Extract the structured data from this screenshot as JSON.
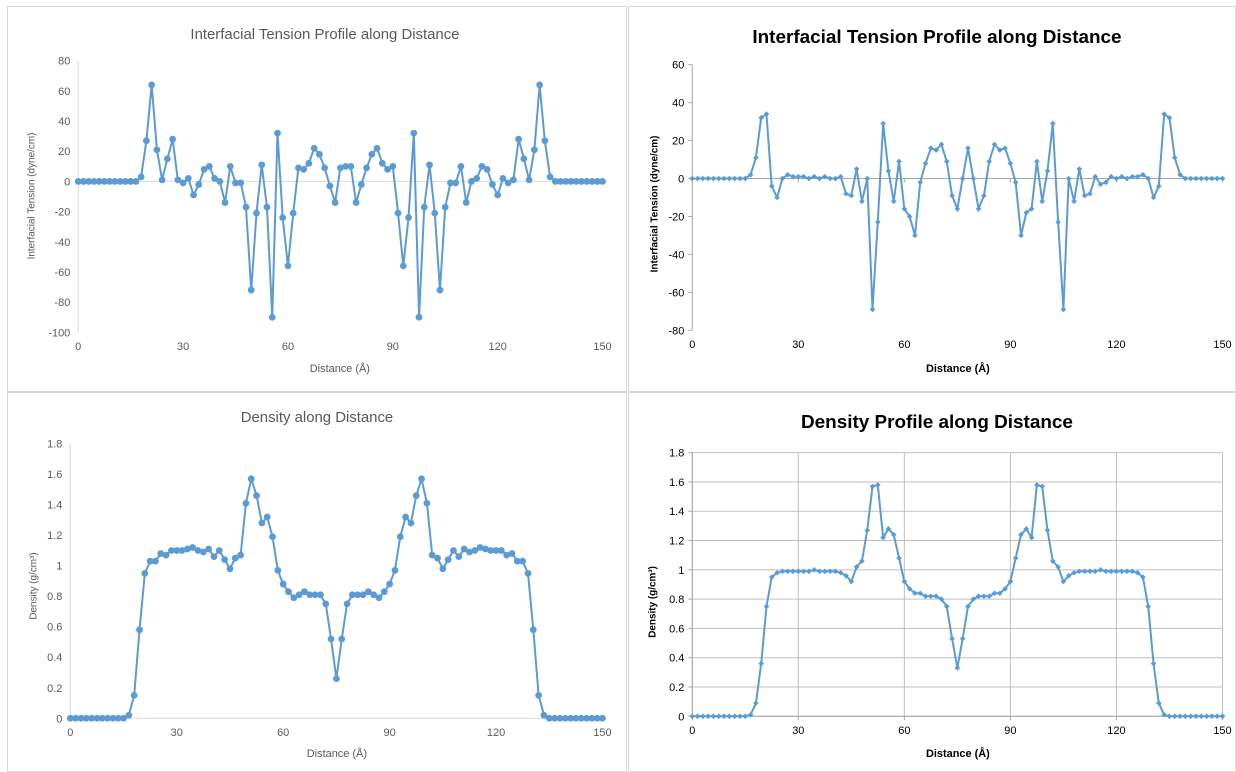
{
  "chart_data": [
    {
      "type": "line",
      "title": "Interfacial Tension  Profile along Distance",
      "xlabel": "Distance (Å)",
      "ylabel": "Interfacial Tension (dyne/cm)",
      "xlim": [
        0,
        150
      ],
      "ylim": [
        -100,
        80
      ],
      "xticks": [
        0,
        30,
        60,
        90,
        120,
        150
      ],
      "yticks": [
        -100,
        -80,
        -60,
        -40,
        -20,
        0,
        20,
        40,
        60,
        80
      ],
      "grid": false,
      "marker": "circle",
      "color": "#5b9bd5",
      "title_bold": false,
      "series": [
        {
          "x": [
            0,
            1.5,
            3,
            4.5,
            6,
            7.5,
            9,
            10.5,
            12,
            13.5,
            15,
            16.5,
            18,
            19.5,
            21,
            22.5,
            24,
            25.5,
            27,
            28.5,
            30,
            31.5,
            33,
            34.5,
            36,
            37.5,
            39,
            40.5,
            42,
            43.5,
            45,
            46.5,
            48,
            49.5,
            51,
            52.5,
            54,
            55.5,
            57,
            58.5,
            60,
            61.5,
            63,
            64.5,
            66,
            67.5,
            69,
            70.5,
            72,
            73.5,
            75,
            76.5,
            78,
            79.5,
            81,
            82.5,
            84,
            85.5,
            87,
            88.5,
            90,
            91.5,
            93,
            94.5,
            96,
            97.5,
            99,
            100.5,
            102,
            103.5,
            105,
            106.5,
            108,
            109.5,
            111,
            112.5,
            114,
            115.5,
            117,
            118.5,
            120,
            121.5,
            123,
            124.5,
            126,
            127.5,
            129,
            130.5,
            132,
            133.5,
            135,
            136.5,
            138,
            139.5,
            141,
            142.5,
            144,
            145.5,
            147,
            148.5,
            150
          ],
          "values": [
            0,
            0,
            0,
            0,
            0,
            0,
            0,
            0,
            0,
            0,
            0,
            0,
            3,
            27,
            64,
            21,
            1,
            15,
            28,
            1,
            -1,
            2,
            -9,
            -2,
            8,
            10,
            2,
            0,
            -14,
            10,
            -1,
            -1,
            -17,
            -72,
            -21,
            11,
            -17,
            -90,
            32,
            -24,
            -56,
            -21,
            9,
            8,
            12,
            22,
            18,
            9,
            -3,
            -14,
            9,
            10,
            10,
            -14,
            -2,
            9,
            18,
            22,
            12,
            8,
            10,
            -21,
            -56,
            -24,
            32,
            -90,
            -17,
            11,
            -21,
            -72,
            -17,
            -1,
            -1,
            10,
            -14,
            0,
            2,
            10,
            8,
            -2,
            -9,
            2,
            -1,
            1,
            28,
            15,
            1,
            21,
            64,
            27,
            3,
            0,
            0,
            0,
            0,
            0,
            0,
            0,
            0,
            0,
            0
          ]
        }
      ]
    },
    {
      "type": "line",
      "title": "Interfacial Tension Profile along Distance",
      "xlabel": "Distance (Å)",
      "ylabel": "Interfacial Tension (dyne/cm)",
      "xlim": [
        0,
        150
      ],
      "ylim": [
        -80,
        60
      ],
      "xticks": [
        0,
        30,
        60,
        90,
        120,
        150
      ],
      "yticks": [
        -80,
        -60,
        -40,
        -20,
        0,
        20,
        40,
        60
      ],
      "grid": false,
      "marker": "diamond",
      "color": "#5b9bd5",
      "title_bold": true,
      "series": [
        {
          "x": [
            0,
            1.5,
            3,
            4.5,
            6,
            7.5,
            9,
            10.5,
            12,
            13.5,
            15,
            16.5,
            18,
            19.5,
            21,
            22.5,
            24,
            25.5,
            27,
            28.5,
            30,
            31.5,
            33,
            34.5,
            36,
            37.5,
            39,
            40.5,
            42,
            43.5,
            45,
            46.5,
            48,
            49.5,
            51,
            52.5,
            54,
            55.5,
            57,
            58.5,
            60,
            61.5,
            63,
            64.5,
            66,
            67.5,
            69,
            70.5,
            72,
            73.5,
            75,
            76.5,
            78,
            79.5,
            81,
            82.5,
            84,
            85.5,
            87,
            88.5,
            90,
            91.5,
            93,
            94.5,
            96,
            97.5,
            99,
            100.5,
            102,
            103.5,
            105,
            106.5,
            108,
            109.5,
            111,
            112.5,
            114,
            115.5,
            117,
            118.5,
            120,
            121.5,
            123,
            124.5,
            126,
            127.5,
            129,
            130.5,
            132,
            133.5,
            135,
            136.5,
            138,
            139.5,
            141,
            142.5,
            144,
            145.5,
            147,
            148.5,
            150
          ],
          "values": [
            0,
            0,
            0,
            0,
            0,
            0,
            0,
            0,
            0,
            0,
            0,
            2,
            11,
            32,
            34,
            -4,
            -10,
            0,
            2,
            1,
            1,
            1,
            0,
            1,
            0,
            1,
            0,
            0,
            1,
            -8,
            -9,
            5,
            -12,
            0,
            -69,
            -23,
            29,
            4,
            -12,
            9,
            -16,
            -20,
            -30,
            -2,
            8,
            16,
            15,
            18,
            9,
            -9,
            -16,
            0,
            16,
            0,
            -16,
            -9,
            9,
            18,
            15,
            16,
            8,
            -2,
            -30,
            -18,
            -16,
            9,
            -12,
            4,
            29,
            -23,
            -69,
            0,
            -12,
            5,
            -9,
            -8,
            1,
            -3,
            -2,
            1,
            0,
            1,
            0,
            1,
            1,
            2,
            0,
            -10,
            -4,
            34,
            32,
            11,
            2,
            0,
            0,
            0,
            0,
            0,
            0,
            0,
            0
          ]
        }
      ]
    },
    {
      "type": "line",
      "title": "Density along Distance",
      "xlabel": "Distance (Å)",
      "ylabel": "Density (g/cm³)",
      "xlim": [
        0,
        150
      ],
      "ylim": [
        0,
        1.8
      ],
      "xticks": [
        0,
        30,
        60,
        90,
        120,
        150
      ],
      "yticks": [
        0,
        0.2,
        0.4,
        0.6,
        0.8,
        1,
        1.2,
        1.4,
        1.6,
        1.8
      ],
      "grid": false,
      "marker": "circle",
      "color": "#5b9bd5",
      "title_bold": false,
      "series": [
        {
          "x": [
            0,
            1.5,
            3,
            4.5,
            6,
            7.5,
            9,
            10.5,
            12,
            13.5,
            15,
            16.5,
            18,
            19.5,
            21,
            22.5,
            24,
            25.5,
            27,
            28.5,
            30,
            31.5,
            33,
            34.5,
            36,
            37.5,
            39,
            40.5,
            42,
            43.5,
            45,
            46.5,
            48,
            49.5,
            51,
            52.5,
            54,
            55.5,
            57,
            58.5,
            60,
            61.5,
            63,
            64.5,
            66,
            67.5,
            69,
            70.5,
            72,
            73.5,
            75,
            76.5,
            78,
            79.5,
            81,
            82.5,
            84,
            85.5,
            87,
            88.5,
            90,
            91.5,
            93,
            94.5,
            96,
            97.5,
            99,
            100.5,
            102,
            103.5,
            105,
            106.5,
            108,
            109.5,
            111,
            112.5,
            114,
            115.5,
            117,
            118.5,
            120,
            121.5,
            123,
            124.5,
            126,
            127.5,
            129,
            130.5,
            132,
            133.5,
            135,
            136.5,
            138,
            139.5,
            141,
            142.5,
            144,
            145.5,
            147,
            148.5,
            150
          ],
          "values": [
            0,
            0,
            0,
            0,
            0,
            0,
            0,
            0,
            0,
            0,
            0,
            0.02,
            0.15,
            0.58,
            0.95,
            1.03,
            1.03,
            1.08,
            1.07,
            1.1,
            1.1,
            1.1,
            1.11,
            1.12,
            1.1,
            1.09,
            1.11,
            1.06,
            1.1,
            1.04,
            0.98,
            1.05,
            1.07,
            1.41,
            1.57,
            1.46,
            1.28,
            1.32,
            1.19,
            0.97,
            0.88,
            0.83,
            0.79,
            0.81,
            0.83,
            0.81,
            0.81,
            0.81,
            0.75,
            0.52,
            0.26,
            0.52,
            0.75,
            0.81,
            0.81,
            0.81,
            0.83,
            0.81,
            0.79,
            0.83,
            0.88,
            0.97,
            1.19,
            1.32,
            1.28,
            1.46,
            1.57,
            1.41,
            1.07,
            1.05,
            0.98,
            1.04,
            1.1,
            1.06,
            1.11,
            1.09,
            1.1,
            1.12,
            1.11,
            1.1,
            1.1,
            1.1,
            1.07,
            1.08,
            1.03,
            1.03,
            0.95,
            0.58,
            0.15,
            0.02,
            0,
            0,
            0,
            0,
            0,
            0,
            0,
            0,
            0,
            0,
            0
          ]
        }
      ]
    },
    {
      "type": "line",
      "title": "Density Profile along Distance",
      "xlabel": "Distance (Å)",
      "ylabel": "Density (g/cm³)",
      "xlim": [
        0,
        150
      ],
      "ylim": [
        0,
        1.8
      ],
      "xticks": [
        0,
        30,
        60,
        90,
        120,
        150
      ],
      "yticks": [
        0,
        0.2,
        0.4,
        0.6,
        0.8,
        1,
        1.2,
        1.4,
        1.6,
        1.8
      ],
      "grid": true,
      "marker": "diamond",
      "color": "#5b9bd5",
      "title_bold": true,
      "series": [
        {
          "x": [
            0,
            1.5,
            3,
            4.5,
            6,
            7.5,
            9,
            10.5,
            12,
            13.5,
            15,
            16.5,
            18,
            19.5,
            21,
            22.5,
            24,
            25.5,
            27,
            28.5,
            30,
            31.5,
            33,
            34.5,
            36,
            37.5,
            39,
            40.5,
            42,
            43.5,
            45,
            46.5,
            48,
            49.5,
            51,
            52.5,
            54,
            55.5,
            57,
            58.5,
            60,
            61.5,
            63,
            64.5,
            66,
            67.5,
            69,
            70.5,
            72,
            73.5,
            75,
            76.5,
            78,
            79.5,
            81,
            82.5,
            84,
            85.5,
            87,
            88.5,
            90,
            91.5,
            93,
            94.5,
            96,
            97.5,
            99,
            100.5,
            102,
            103.5,
            105,
            106.5,
            108,
            109.5,
            111,
            112.5,
            114,
            115.5,
            117,
            118.5,
            120,
            121.5,
            123,
            124.5,
            126,
            127.5,
            129,
            130.5,
            132,
            133.5,
            135,
            136.5,
            138,
            139.5,
            141,
            142.5,
            144,
            145.5,
            147,
            148.5,
            150
          ],
          "values": [
            0,
            0,
            0,
            0,
            0,
            0,
            0,
            0,
            0,
            0,
            0,
            0.01,
            0.09,
            0.36,
            0.75,
            0.95,
            0.98,
            0.99,
            0.99,
            0.99,
            0.99,
            0.99,
            0.99,
            1.0,
            0.99,
            0.99,
            0.99,
            0.99,
            0.98,
            0.96,
            0.92,
            1.02,
            1.06,
            1.27,
            1.57,
            1.58,
            1.22,
            1.28,
            1.24,
            1.08,
            0.92,
            0.87,
            0.84,
            0.84,
            0.82,
            0.82,
            0.82,
            0.8,
            0.75,
            0.53,
            0.33,
            0.53,
            0.75,
            0.8,
            0.82,
            0.82,
            0.82,
            0.84,
            0.84,
            0.87,
            0.92,
            1.08,
            1.24,
            1.28,
            1.22,
            1.58,
            1.57,
            1.27,
            1.06,
            1.02,
            0.92,
            0.96,
            0.98,
            0.99,
            0.99,
            0.99,
            0.99,
            1.0,
            0.99,
            0.99,
            0.99,
            0.99,
            0.99,
            0.99,
            0.98,
            0.95,
            0.75,
            0.36,
            0.09,
            0.01,
            0,
            0,
            0,
            0,
            0,
            0,
            0,
            0,
            0,
            0,
            0
          ]
        }
      ]
    }
  ]
}
